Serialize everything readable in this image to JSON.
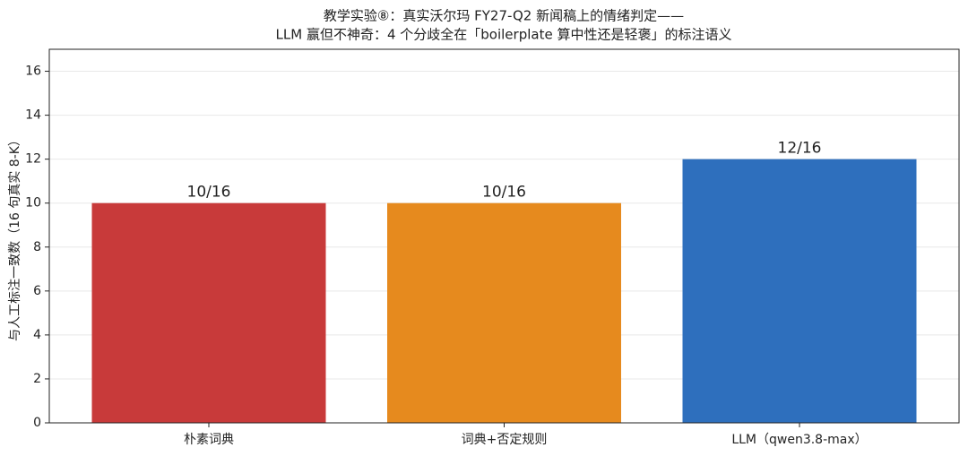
{
  "chart_data": {
    "type": "bar",
    "title": [
      "教学实验⑧：真实沃尔玛 FY27-Q2 新闻稿上的情绪判定——",
      "LLM 赢但不神奇：4 个分歧全在「boilerplate 算中性还是轻褒」的标注语义"
    ],
    "y_label": "与人工标注一致数（16 句真实 8-K）",
    "categories": [
      "朴素词典",
      "词典+否定规则",
      "LLM（qwen3.8-max）"
    ],
    "values": [
      10,
      10,
      12
    ],
    "value_labels": [
      "10/16",
      "10/16",
      "12/16"
    ],
    "colors": [
      "#c83a3a",
      "#e68a1e",
      "#2e6fbd"
    ],
    "ylim": [
      0,
      17
    ],
    "yticks": [
      0,
      2,
      4,
      6,
      8,
      10,
      12,
      14,
      16
    ],
    "grid": true
  }
}
